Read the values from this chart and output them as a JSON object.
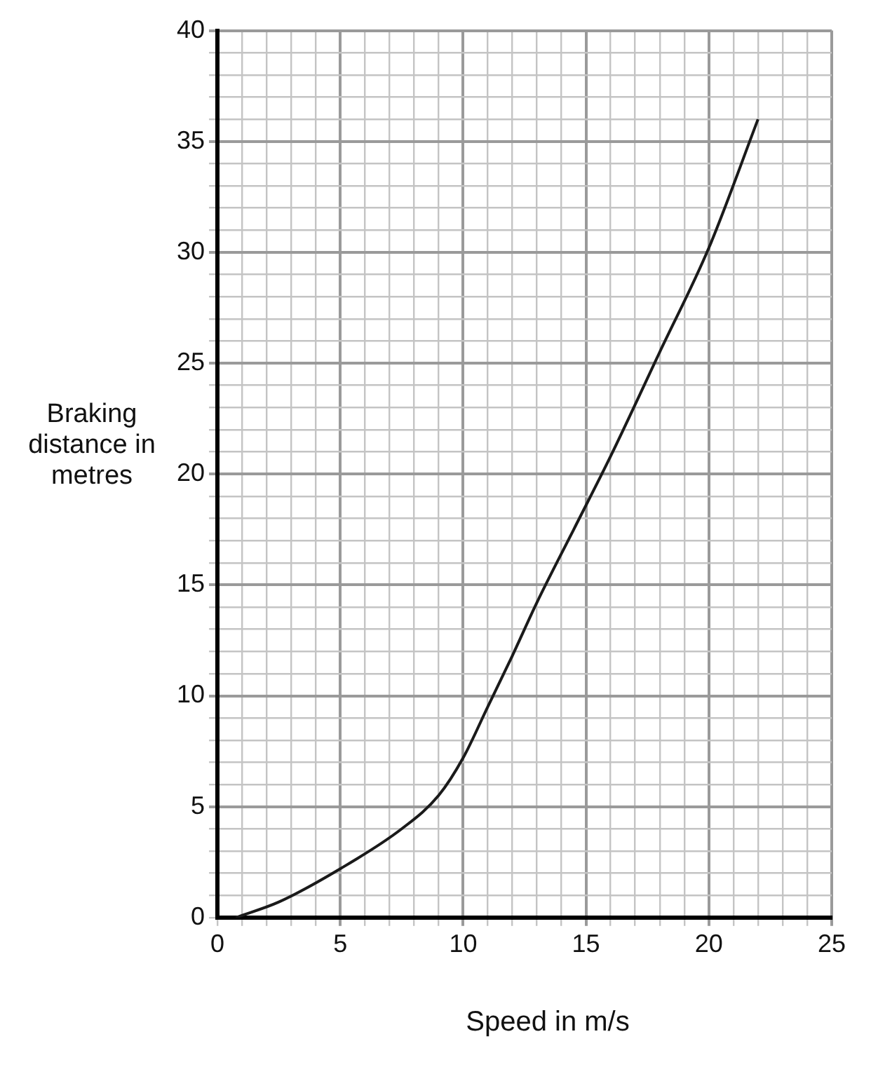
{
  "chart_data": {
    "type": "line",
    "xlabel": "Speed in m/s",
    "ylabel": "Braking distance in metres",
    "xlim": [
      0,
      25
    ],
    "ylim": [
      0,
      40
    ],
    "xticks": [
      0,
      {
        "value": 1,
        "label": null
      },
      {
        "value": 2,
        "label": null
      },
      {
        "value": 3,
        "label": null
      },
      {
        "value": 4,
        "label": null
      },
      5,
      {
        "value": 6,
        "label": null
      },
      {
        "value": 7,
        "label": null
      },
      {
        "value": 8,
        "label": null
      },
      {
        "value": 9,
        "label": null
      },
      10,
      {
        "value": 11,
        "label": null
      },
      {
        "value": 12,
        "label": null
      },
      {
        "value": 13,
        "label": null
      },
      {
        "value": 14,
        "label": null
      },
      15,
      {
        "value": 16,
        "label": null
      },
      {
        "value": 17,
        "label": null
      },
      {
        "value": 18,
        "label": null
      },
      {
        "value": 19,
        "label": null
      },
      20,
      {
        "value": 21,
        "label": null
      },
      {
        "value": 22,
        "label": null
      },
      {
        "value": 23,
        "label": null
      },
      {
        "value": 24,
        "label": null
      },
      25
    ],
    "yticks": [
      0,
      {
        "value": 1,
        "label": null
      },
      {
        "value": 2,
        "label": null
      },
      {
        "value": 3,
        "label": null
      },
      {
        "value": 4,
        "label": null
      },
      5,
      {
        "value": 6,
        "label": null
      },
      {
        "value": 7,
        "label": null
      },
      {
        "value": 8,
        "label": null
      },
      {
        "value": 9,
        "label": null
      },
      10,
      {
        "value": 11,
        "label": null
      },
      {
        "value": 12,
        "label": null
      },
      {
        "value": 13,
        "label": null
      },
      {
        "value": 14,
        "label": null
      },
      15,
      {
        "value": 16,
        "label": null
      },
      {
        "value": 17,
        "label": null
      },
      {
        "value": 18,
        "label": null
      },
      {
        "value": 19,
        "label": null
      },
      20,
      {
        "value": 21,
        "label": null
      },
      {
        "value": 22,
        "label": null
      },
      {
        "value": 23,
        "label": null
      },
      {
        "value": 24,
        "label": null
      },
      25,
      {
        "value": 26,
        "label": null
      },
      {
        "value": 27,
        "label": null
      },
      {
        "value": 28,
        "label": null
      },
      {
        "value": 29,
        "label": null
      },
      30,
      {
        "value": 31,
        "label": null
      },
      {
        "value": 32,
        "label": null
      },
      {
        "value": 33,
        "label": null
      },
      {
        "value": 34,
        "label": null
      },
      35,
      {
        "value": 36,
        "label": null
      },
      {
        "value": 37,
        "label": null
      },
      {
        "value": 38,
        "label": null
      },
      {
        "value": 39,
        "label": null
      },
      40
    ],
    "grid": true,
    "marker": "none",
    "line_style": "solid",
    "series": [
      {
        "color": "#1a1a1a",
        "x": [
          0.75,
          2.5,
          5,
          7.5,
          9,
          10,
          11,
          12,
          13,
          14.5,
          16,
          18,
          20,
          22
        ],
        "values": [
          0,
          0.7,
          2.2,
          4,
          5.5,
          7.2,
          9.5,
          11.8,
          14.2,
          17.5,
          20.8,
          25.5,
          30.2,
          36
        ]
      }
    ]
  }
}
